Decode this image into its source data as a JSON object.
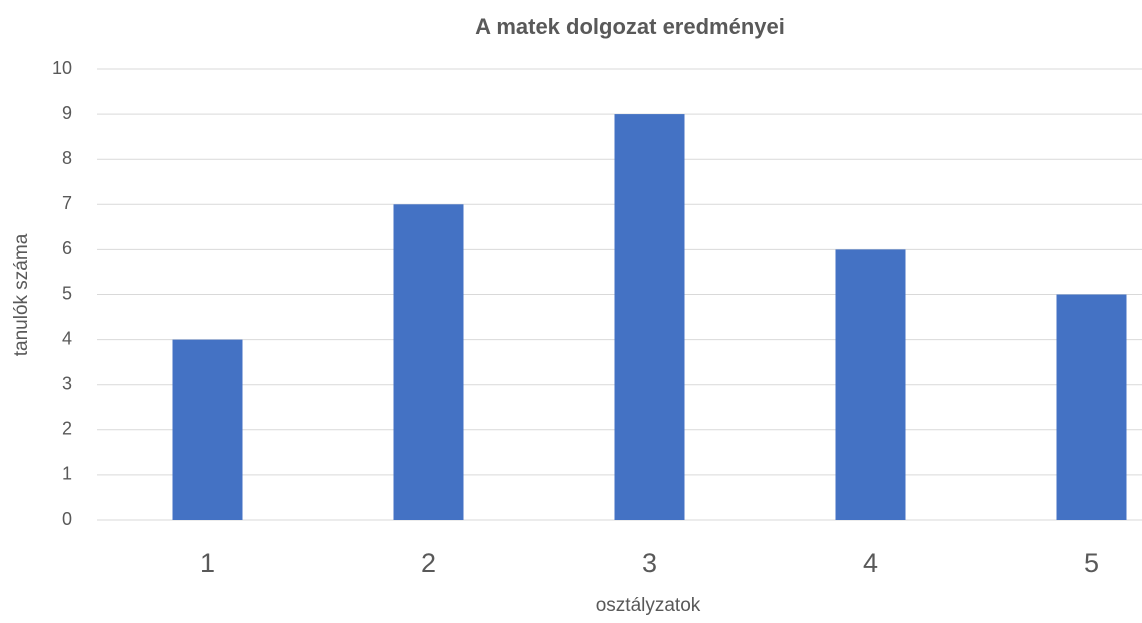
{
  "chart_data": {
    "type": "bar",
    "title": "A matek dolgozat eredményei",
    "x_label": "osztályzatok",
    "y_label": "tanulók száma",
    "categories": [
      "1",
      "2",
      "3",
      "4",
      "5"
    ],
    "values": [
      4,
      7,
      9,
      6,
      5
    ],
    "color": "#4472c4",
    "ylim": [
      0,
      10
    ],
    "yticks": [
      0,
      1,
      2,
      3,
      4,
      5,
      6,
      7,
      8,
      9,
      10
    ],
    "grid": true
  }
}
